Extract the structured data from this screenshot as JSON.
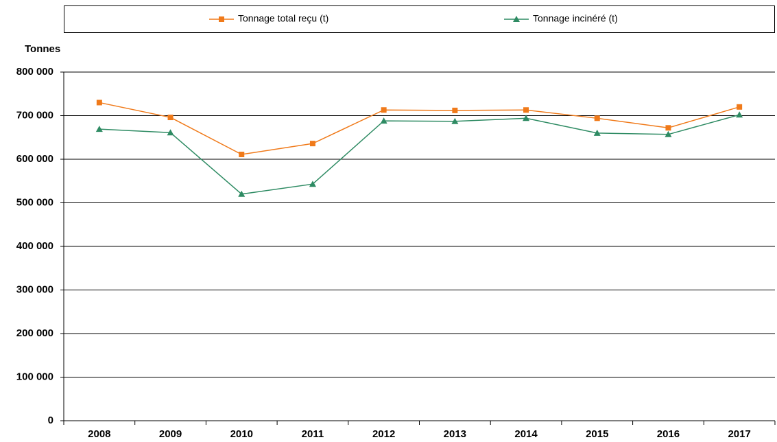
{
  "chart_data": {
    "type": "line",
    "y_axis_label": "Tonnes",
    "categories": [
      "2008",
      "2009",
      "2010",
      "2011",
      "2012",
      "2013",
      "2014",
      "2015",
      "2016",
      "2017"
    ],
    "series": [
      {
        "name": "Tonnage total reçu (t)",
        "color": "#f07a1a",
        "marker": "square",
        "values": [
          730000,
          696000,
          611000,
          636000,
          713000,
          712000,
          713000,
          694000,
          672000,
          720000
        ]
      },
      {
        "name": "Tonnage incinéré (t)",
        "color": "#2e8b63",
        "marker": "triangle",
        "values": [
          669000,
          661000,
          520000,
          543000,
          688000,
          687000,
          694000,
          660000,
          657000,
          702000
        ]
      }
    ],
    "ylim": [
      0,
      800000
    ],
    "yticks": [
      0,
      {
        "value": 100000,
        "label": "100 000"
      },
      {
        "value": 200000,
        "label": "200 000"
      },
      {
        "value": 300000,
        "label": "300 000"
      },
      {
        "value": 400000,
        "label": "400 000"
      },
      {
        "value": 500000,
        "label": "500 000"
      },
      {
        "value": 600000,
        "label": "600 000"
      },
      {
        "value": 700000,
        "label": "700 000"
      },
      {
        "value": 800000,
        "label": "800 000"
      }
    ],
    "grid": true,
    "legend": "top"
  }
}
